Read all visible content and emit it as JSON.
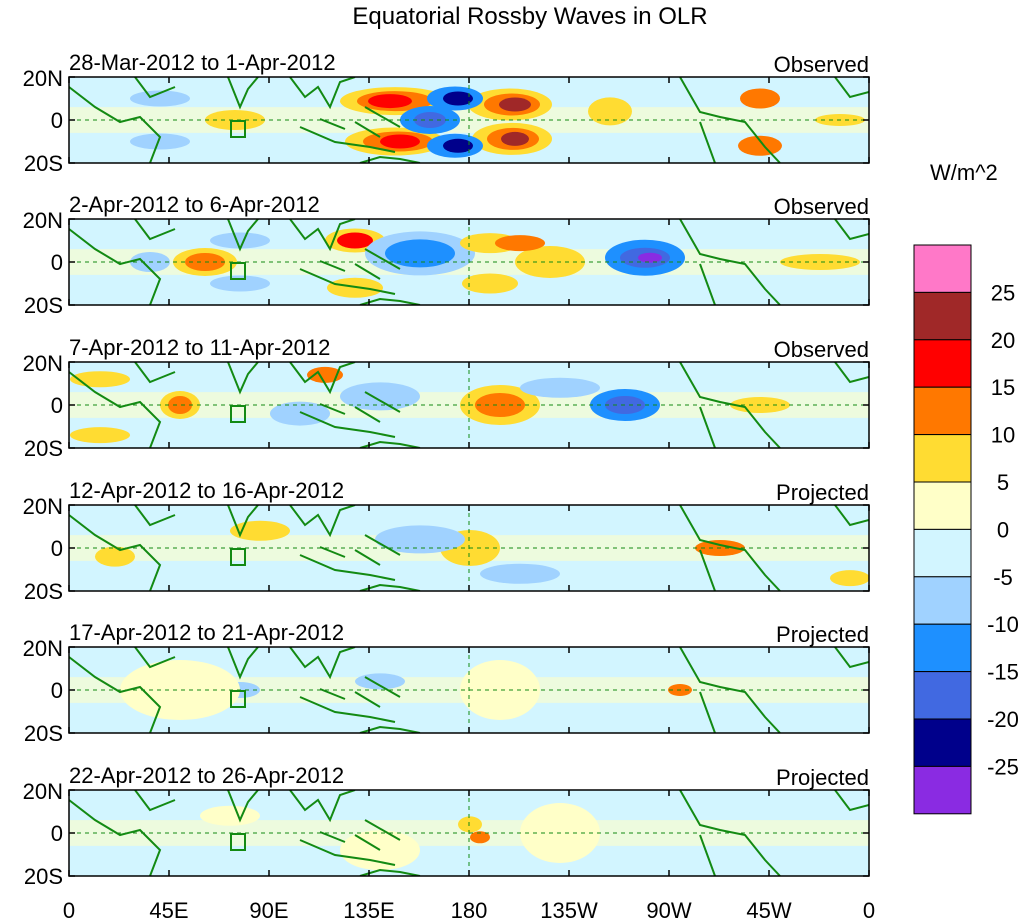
{
  "title": "Equatorial Rossby Waves in OLR",
  "units": "W/m^2",
  "lat_labels": [
    "20N",
    "0",
    "20S"
  ],
  "lon_labels": [
    "0",
    "45E",
    "90E",
    "135E",
    "180",
    "135W",
    "90W",
    "45W",
    "0"
  ],
  "panels": [
    {
      "period": "28-Mar-2012 to 1-Apr-2012",
      "status": "Observed"
    },
    {
      "period": "2-Apr-2012 to 6-Apr-2012",
      "status": "Observed"
    },
    {
      "period": "7-Apr-2012 to 11-Apr-2012",
      "status": "Observed"
    },
    {
      "period": "12-Apr-2012 to 16-Apr-2012",
      "status": "Projected"
    },
    {
      "period": "17-Apr-2012 to 21-Apr-2012",
      "status": "Projected"
    },
    {
      "period": "22-Apr-2012 to 26-Apr-2012",
      "status": "Projected"
    }
  ],
  "colorbar": {
    "labels": [
      "25",
      "20",
      "15",
      "10",
      "5",
      "0",
      "-5",
      "-10",
      "-15",
      "-20",
      "-25"
    ],
    "colors": [
      "#ff78c8",
      "#a02828",
      "#ff0000",
      "#ff7800",
      "#ffdc32",
      "#ffffc8",
      "#d2f5ff",
      "#a0d2ff",
      "#1e90ff",
      "#4169e1",
      "#00008b",
      "#8a2be2"
    ]
  },
  "colors": {
    "coast": "#138a13",
    "zero_line": "#138a13",
    "frame": "#000000"
  }
}
